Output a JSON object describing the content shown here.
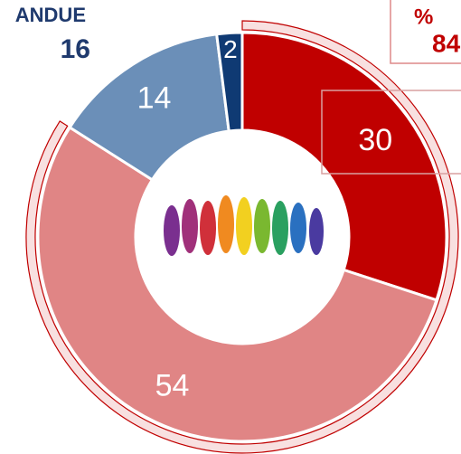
{
  "header": {
    "label": "ANDUE",
    "value": "16"
  },
  "chart_data": {
    "type": "donut",
    "values": [
      30,
      54,
      14,
      2
    ],
    "colors": [
      "#c00000",
      "#e08585",
      "#6b8fb8",
      "#0f3a73"
    ],
    "highlight": {
      "label": "%",
      "value": 84,
      "color": "#c00000"
    }
  }
}
